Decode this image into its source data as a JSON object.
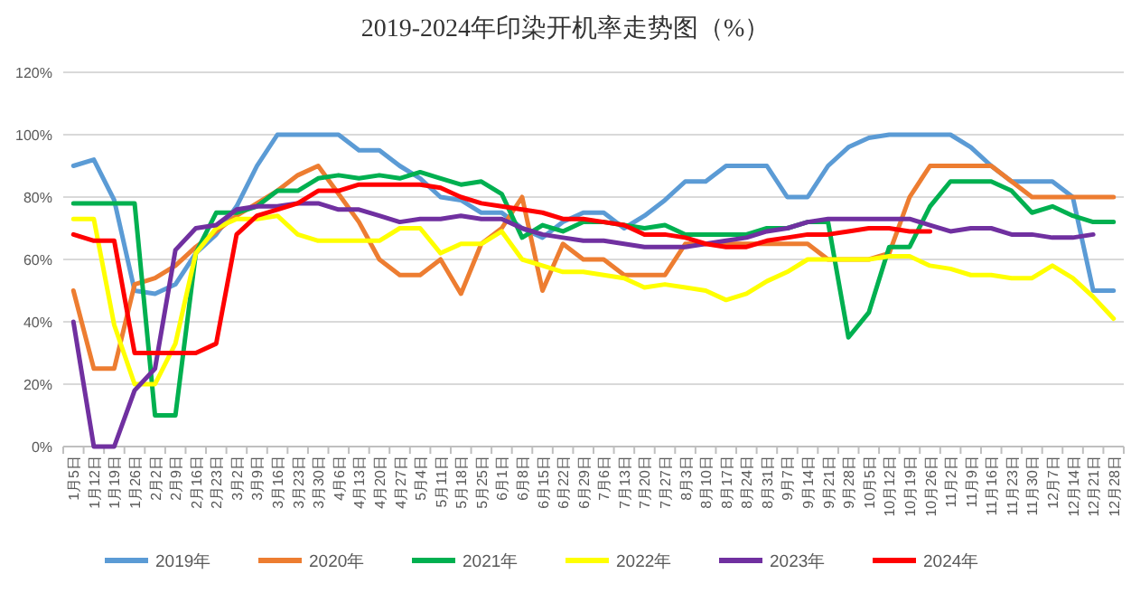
{
  "chart_data": {
    "type": "line",
    "title": "2019-2024年印染开机率走势图（%）",
    "categories": [
      "1月5日",
      "1月12日",
      "1月19日",
      "1月26日",
      "2月2日",
      "2月9日",
      "2月16日",
      "2月23日",
      "3月2日",
      "3月9日",
      "3月16日",
      "3月23日",
      "3月30日",
      "4月6日",
      "4月13日",
      "4月20日",
      "4月27日",
      "5月4日",
      "5月11日",
      "5月18日",
      "5月25日",
      "6月1日",
      "6月8日",
      "6月15日",
      "6月22日",
      "6月29日",
      "7月6日",
      "7月13日",
      "7月20日",
      "7月27日",
      "8月3日",
      "8月10日",
      "8月17日",
      "8月24日",
      "8月31日",
      "9月7日",
      "9月14日",
      "9月21日",
      "9月28日",
      "10月5日",
      "10月12日",
      "10月19日",
      "10月26日",
      "11月2日",
      "11月9日",
      "11月16日",
      "11月23日",
      "11月30日",
      "12月7日",
      "12月14日",
      "12月21日",
      "12月28日"
    ],
    "series": [
      {
        "name": "2019年",
        "color": "#5b9bd5",
        "values": [
          90,
          92,
          79,
          50,
          49,
          52,
          62,
          68,
          77,
          90,
          100,
          100,
          100,
          100,
          95,
          95,
          90,
          86,
          80,
          79,
          75,
          75,
          70,
          67,
          72,
          75,
          75,
          70,
          74,
          79,
          85,
          85,
          90,
          90,
          90,
          80,
          80,
          90,
          96,
          99,
          100,
          100,
          100,
          100,
          96,
          90,
          85,
          85,
          85,
          80,
          50,
          50
        ]
      },
      {
        "name": "2020年",
        "color": "#ed7d31",
        "values": [
          50,
          25,
          25,
          52,
          54,
          58,
          64,
          69,
          74,
          78,
          82,
          87,
          90,
          81,
          72,
          60,
          55,
          55,
          60,
          49,
          65,
          70,
          80,
          50,
          65,
          60,
          60,
          55,
          55,
          55,
          65,
          65,
          65,
          65,
          65,
          65,
          65,
          60,
          60,
          60,
          62,
          80,
          90,
          90,
          90,
          90,
          85,
          80,
          80,
          80,
          80,
          80
        ]
      },
      {
        "name": "2021年",
        "color": "#00b050",
        "values": [
          78,
          78,
          78,
          78,
          10,
          10,
          62,
          75,
          75,
          77,
          82,
          82,
          86,
          87,
          86,
          87,
          86,
          88,
          86,
          84,
          85,
          81,
          67,
          71,
          69,
          72,
          72,
          71,
          70,
          71,
          68,
          68,
          68,
          68,
          70,
          70,
          72,
          72,
          35,
          43,
          64,
          64,
          77,
          85,
          85,
          85,
          82,
          75,
          77,
          74,
          72,
          72
        ]
      },
      {
        "name": "2022年",
        "color": "#ffff00",
        "values": [
          73,
          73,
          39,
          20,
          20,
          33,
          62,
          70,
          73,
          73,
          74,
          68,
          66,
          66,
          66,
          66,
          70,
          70,
          62,
          65,
          65,
          69,
          60,
          58,
          56,
          56,
          55,
          54,
          51,
          52,
          51,
          50,
          47,
          49,
          53,
          56,
          60,
          60,
          60,
          60,
          61,
          61,
          58,
          57,
          55,
          55,
          54,
          54,
          58,
          54,
          48,
          41
        ]
      },
      {
        "name": "2023年",
        "color": "#7030a0",
        "values": [
          40,
          0,
          0,
          18,
          25,
          63,
          70,
          71,
          76,
          77,
          77,
          78,
          78,
          76,
          76,
          74,
          72,
          73,
          73,
          74,
          73,
          73,
          70,
          68,
          67,
          66,
          66,
          65,
          64,
          64,
          64,
          65,
          66,
          67,
          69,
          70,
          72,
          73,
          73,
          73,
          73,
          73,
          71,
          69,
          70,
          70,
          68,
          68,
          67,
          67,
          68,
          null
        ]
      },
      {
        "name": "2024年",
        "color": "#ff0000",
        "values": [
          68,
          66,
          66,
          30,
          30,
          30,
          30,
          33,
          68,
          74,
          76,
          78,
          82,
          82,
          84,
          84,
          84,
          84,
          83,
          80,
          78,
          77,
          76,
          75,
          73,
          73,
          72,
          71,
          68,
          68,
          67,
          65,
          64,
          64,
          66,
          67,
          68,
          68,
          69,
          70,
          70,
          69,
          69,
          null,
          null,
          null,
          null,
          null,
          null,
          null,
          null,
          null
        ]
      }
    ],
    "ylim": [
      0,
      120
    ],
    "yticks": [
      {
        "value": 0,
        "label": "0%"
      },
      {
        "value": 20,
        "label": "20%"
      },
      {
        "value": 40,
        "label": "40%"
      },
      {
        "value": 60,
        "label": "60%"
      },
      {
        "value": 80,
        "label": "80%"
      },
      {
        "value": 100,
        "label": "100%"
      },
      {
        "value": 120,
        "label": "120%"
      }
    ],
    "grid": "y",
    "legend": "bottom"
  }
}
